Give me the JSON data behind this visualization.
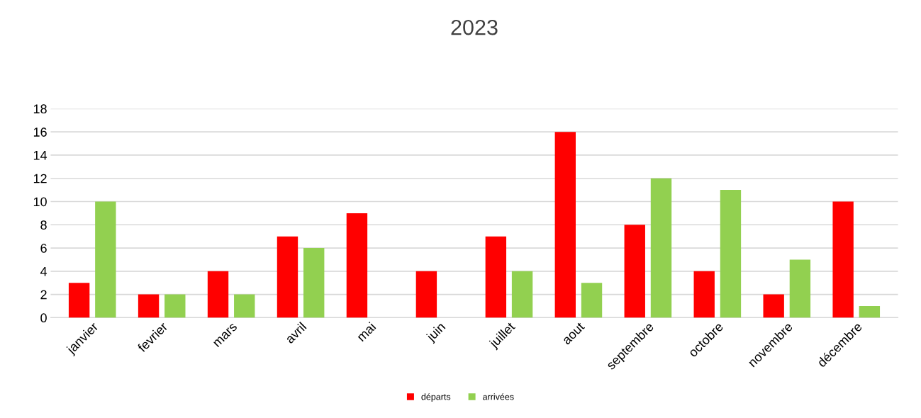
{
  "chart_data": {
    "type": "bar",
    "title": "2023",
    "categories": [
      "janvier",
      "fevrier",
      "mars",
      "avril",
      "mai",
      "juin",
      "juillet",
      "aout",
      "septembre",
      "octobre",
      "novembre",
      "décembre"
    ],
    "series": [
      {
        "name": "départs",
        "color": "#ff0000",
        "values": [
          3,
          2,
          4,
          7,
          9,
          4,
          7,
          16,
          8,
          4,
          2,
          10
        ]
      },
      {
        "name": "arrivées",
        "color": "#92d050",
        "values": [
          10,
          2,
          2,
          6,
          null,
          null,
          4,
          3,
          12,
          11,
          5,
          1
        ]
      }
    ],
    "ylim": [
      0,
      18
    ],
    "yticks": [
      0,
      2,
      4,
      6,
      8,
      10,
      12,
      14,
      16,
      18
    ],
    "grid": "y",
    "legend": "bottom"
  }
}
